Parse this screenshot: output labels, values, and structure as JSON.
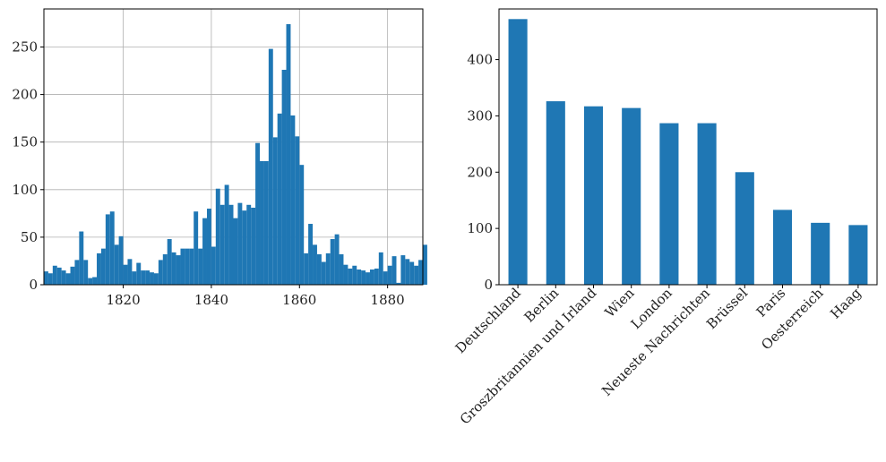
{
  "chart_data": [
    {
      "type": "bar",
      "subtype": "histogram",
      "title": "",
      "xlabel": "",
      "ylabel": "",
      "grid": true,
      "color": "#1f77b4",
      "xlim": [
        1802,
        1888
      ],
      "ylim": [
        0,
        290
      ],
      "bin_start": 1802,
      "bin_width": 1,
      "x_ticks": [
        1820,
        1840,
        1860,
        1880
      ],
      "y_ticks": [
        0,
        50,
        100,
        150,
        200,
        250
      ],
      "values": [
        14,
        12,
        20,
        18,
        15,
        12,
        19,
        26,
        56,
        26,
        7,
        8,
        33,
        38,
        74,
        77,
        42,
        51,
        21,
        27,
        14,
        23,
        15,
        15,
        13,
        12,
        26,
        32,
        48,
        34,
        31,
        38,
        38,
        38,
        77,
        38,
        70,
        80,
        40,
        101,
        84,
        105,
        84,
        70,
        86,
        78,
        84,
        81,
        149,
        130,
        130,
        248,
        155,
        180,
        226,
        274,
        178,
        156,
        126,
        33,
        64,
        42,
        32,
        24,
        33,
        48,
        53,
        32,
        21,
        17,
        20,
        16,
        15,
        13,
        16,
        17,
        34,
        14,
        20,
        30,
        2,
        31,
        27,
        24,
        20,
        26,
        42
      ]
    },
    {
      "type": "bar",
      "title": "",
      "xlabel": "",
      "ylabel": "",
      "grid": false,
      "color": "#1f77b4",
      "ylim": [
        0,
        490
      ],
      "y_ticks": [
        0,
        100,
        200,
        300,
        400
      ],
      "categories": [
        "Deutschland",
        "Berlin",
        "Groszbritannien und Irland",
        "Wien",
        "London",
        "Neueste Nachrichten",
        "Brüssel",
        "Paris",
        "Oesterreich",
        "Haag"
      ],
      "values": [
        472,
        326,
        317,
        314,
        287,
        287,
        200,
        133,
        110,
        106
      ]
    }
  ]
}
